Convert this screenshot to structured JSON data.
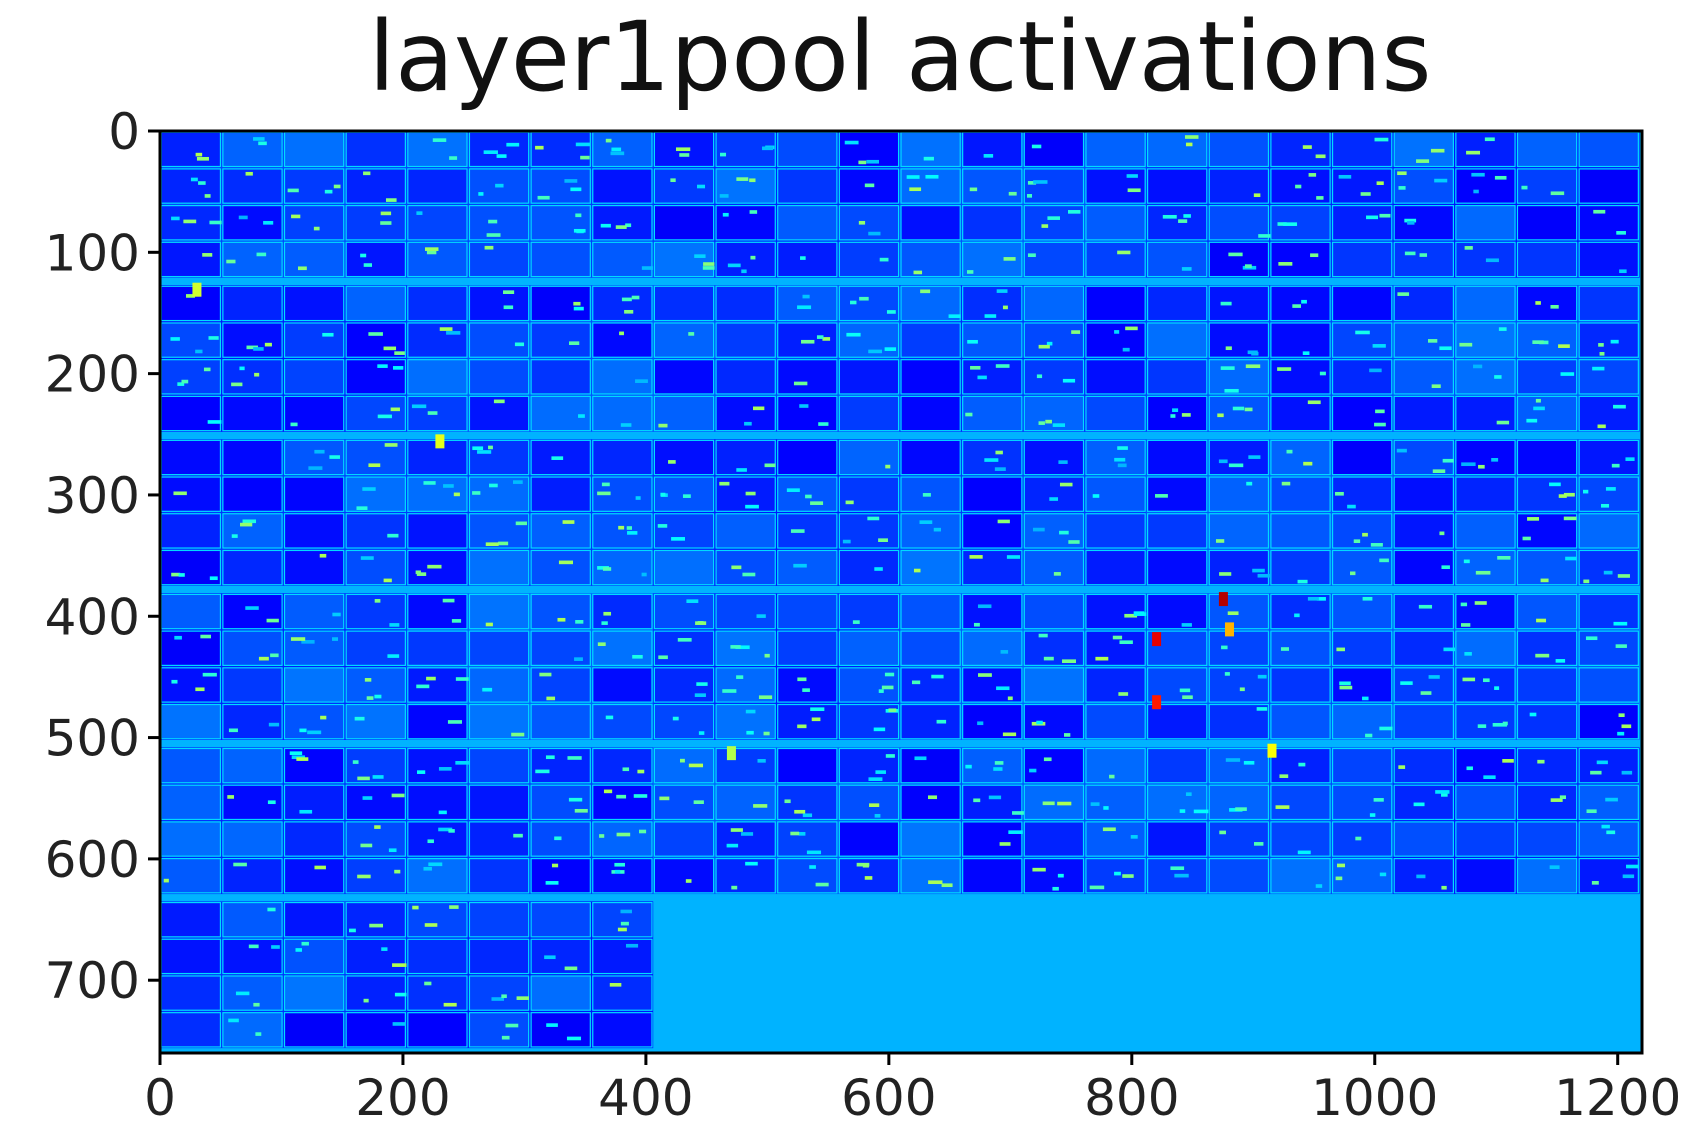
{
  "chart_data": {
    "type": "heatmap",
    "title": "layer1pool activations",
    "xlabel": "",
    "ylabel": "",
    "xlim": [
      0,
      1220
    ],
    "ylim": [
      760,
      0
    ],
    "x_ticks": [
      0,
      200,
      400,
      600,
      800,
      1000,
      1200
    ],
    "y_ticks": [
      0,
      100,
      200,
      300,
      400,
      500,
      600,
      700
    ],
    "x_tick_labels": [
      "0",
      "200",
      "400",
      "600",
      "800",
      "1000",
      "1200"
    ],
    "y_tick_labels": [
      "0",
      "100",
      "200",
      "300",
      "400",
      "500",
      "600",
      "700"
    ],
    "colormap": "jet",
    "grid": "off",
    "tile_grid": {
      "columns": 6,
      "rows": 6,
      "tile_width": 203,
      "tile_height": 127,
      "subgrid": "4 x 4 feature maps per tile, thin light border lines"
    },
    "filled_tiles_per_row": [
      6,
      6,
      6,
      6,
      6,
      2
    ],
    "background_value": 0.3,
    "activation_range": [
      0.0,
      1.0
    ],
    "hot_spots": [
      {
        "x": 875,
        "y": 385,
        "value": 0.95
      },
      {
        "x": 820,
        "y": 418,
        "value": 0.9
      },
      {
        "x": 820,
        "y": 470,
        "value": 0.85
      },
      {
        "x": 880,
        "y": 410,
        "value": 0.7
      },
      {
        "x": 915,
        "y": 510,
        "value": 0.62
      },
      {
        "x": 230,
        "y": 255,
        "value": 0.6
      },
      {
        "x": 30,
        "y": 130,
        "value": 0.58
      },
      {
        "x": 470,
        "y": 512,
        "value": 0.55
      }
    ]
  }
}
